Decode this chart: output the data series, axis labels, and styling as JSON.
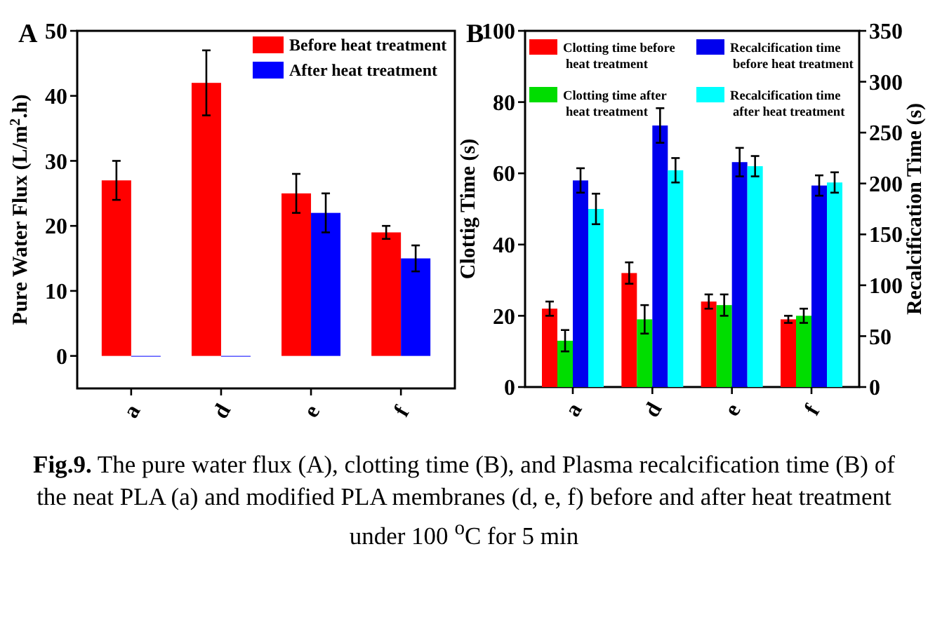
{
  "chart_data": [
    {
      "type": "bar",
      "title": "A",
      "ylabel": "Pure Water Flux (L/m$^{2}$.h)",
      "categories": [
        "a",
        "d",
        "e",
        "f"
      ],
      "ylim": [
        -5,
        50
      ],
      "yticks": [
        0,
        10,
        20,
        30,
        40,
        50
      ],
      "legend": "top right",
      "series": [
        {
          "name": "Before heat treatment",
          "color": "#ff0000",
          "values": [
            27,
            42,
            25,
            19
          ],
          "errors": [
            3,
            5,
            3,
            1
          ]
        },
        {
          "name": "After heat treatment",
          "color": "#0000ff",
          "values": [
            0,
            0,
            22,
            15
          ],
          "errors": [
            null,
            null,
            3,
            2
          ]
        }
      ]
    },
    {
      "type": "bar",
      "title": "B",
      "ylabel": "Clottig Time (s)",
      "y2label": "Recalcification Time (s)",
      "categories": [
        "a",
        "d",
        "e",
        "f"
      ],
      "ylim": [
        0,
        100
      ],
      "yticks": [
        0,
        20,
        40,
        60,
        80,
        100
      ],
      "y2lim": [
        0,
        350
      ],
      "y2ticks": [
        0,
        50,
        100,
        150,
        200,
        250,
        300,
        350
      ],
      "legend": "top",
      "series": [
        {
          "name": "Clotting time before heat treatment",
          "color": "#ff0000",
          "values": [
            22,
            32,
            24,
            19
          ],
          "errors": [
            2,
            3,
            2,
            1
          ]
        },
        {
          "name": "Clotting time after heat treatment",
          "color": "#00dd00",
          "values": [
            13,
            19,
            23,
            20
          ],
          "errors": [
            3,
            4,
            3,
            2
          ]
        },
        {
          "name": "Recalcification time before heat treatment",
          "color": "#0000ee",
          "values": [
            203,
            257,
            221,
            198
          ],
          "errors": [
            12,
            17,
            14,
            10
          ],
          "axis": "y2"
        },
        {
          "name": "Recalcification time after heat treatment",
          "color": "#00ffff",
          "values": [
            175,
            213,
            217,
            201
          ],
          "errors": [
            15,
            12,
            10,
            10
          ],
          "axis": "y2"
        }
      ],
      "annotations": [
        "Fig.9. The pure water flux (A), clotting time (B), and Plasma recalcification time (B) of the neat PLA (a) and modified PLA membranes (d, e, f) before and after heat treatment under 100 $^{o}$C for 5 min"
      ]
    }
  ]
}
